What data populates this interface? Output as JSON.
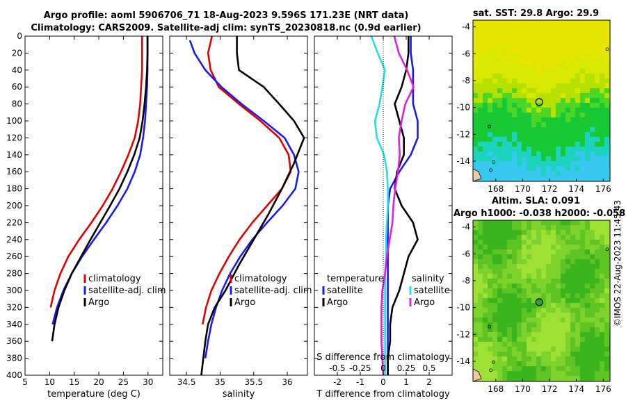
{
  "title": {
    "line1": "Argo profile: aoml 5906706_71 18-Aug-2023 9.596S 171.23E (NRT data)",
    "line2": "Climatology: CARS2009. Satellite-adj clim: synTS_20230818.nc (0.9d earlier)"
  },
  "credit": "©IMOS 22-Aug-2023 11:45:43",
  "colors": {
    "climatology": "#e00000",
    "satellite": "#1a1aee",
    "argo": "#000000",
    "temperature_diff": "#22e0e8",
    "salinity_diff": "#e020e0"
  },
  "chart_data": [
    {
      "id": "temp",
      "type": "line",
      "xlabel": "temperature (deg C)",
      "ylabel": "",
      "xlim": [
        5,
        33
      ],
      "ylim": [
        0,
        400
      ],
      "xticks": [
        5,
        10,
        15,
        20,
        25,
        30
      ],
      "yticks": [
        0,
        20,
        40,
        60,
        80,
        100,
        120,
        140,
        160,
        180,
        200,
        220,
        240,
        260,
        280,
        300,
        320,
        340,
        360,
        380,
        400
      ],
      "legend": [
        "climatology",
        "satellite-adj. clim",
        "Argo"
      ],
      "series": [
        {
          "name": "climatology",
          "color": "#e00000",
          "x": [
            28.8,
            28.8,
            28.8,
            28.6,
            28.4,
            28.0,
            27.3,
            26.0,
            24.5,
            22.8,
            20.8,
            18.5,
            16.0,
            13.8,
            12.2,
            11.0,
            10.2
          ],
          "y": [
            0,
            20,
            40,
            60,
            80,
            100,
            120,
            140,
            160,
            180,
            200,
            220,
            240,
            260,
            280,
            300,
            320
          ]
        },
        {
          "name": "satellite-adj. clim",
          "color": "#1a1aee",
          "x": [
            29.9,
            29.9,
            29.9,
            29.8,
            29.6,
            29.4,
            29.0,
            28.4,
            27.3,
            25.8,
            23.8,
            21.5,
            19.0,
            16.6,
            14.5,
            12.8,
            11.5,
            10.6
          ],
          "y": [
            0,
            20,
            40,
            60,
            80,
            100,
            120,
            140,
            160,
            180,
            200,
            220,
            240,
            260,
            280,
            300,
            320,
            340
          ]
        },
        {
          "name": "Argo",
          "color": "#000000",
          "x": [
            29.9,
            29.9,
            29.8,
            29.6,
            29.3,
            28.9,
            28.3,
            27.2,
            25.8,
            24.2,
            22.3,
            20.3,
            18.3,
            16.4,
            14.5,
            13.0,
            11.8,
            11.0,
            10.5
          ],
          "y": [
            0,
            20,
            40,
            60,
            80,
            100,
            120,
            140,
            160,
            180,
            200,
            220,
            240,
            260,
            280,
            300,
            320,
            340,
            360
          ]
        }
      ]
    },
    {
      "id": "sal",
      "type": "line",
      "xlabel": "salinity",
      "ylabel": "",
      "xlim": [
        34.25,
        36.3
      ],
      "ylim": [
        0,
        400
      ],
      "xticks": [
        34.5,
        35,
        35.5,
        36
      ],
      "legend": [
        "climatology",
        "satellite-adj. clim",
        "Argo"
      ],
      "series": [
        {
          "name": "climatology",
          "color": "#e00000",
          "x": [
            34.88,
            34.82,
            34.86,
            34.98,
            35.28,
            35.6,
            35.88,
            36.02,
            36.05,
            35.92,
            35.7,
            35.48,
            35.29,
            35.13,
            34.99,
            34.87,
            34.79,
            34.74
          ],
          "y": [
            0,
            20,
            40,
            60,
            80,
            100,
            120,
            140,
            160,
            180,
            200,
            220,
            240,
            260,
            280,
            300,
            320,
            340
          ]
        },
        {
          "name": "satellite-adj. clim",
          "color": "#1a1aee",
          "x": [
            34.55,
            34.62,
            34.78,
            35.02,
            35.32,
            35.65,
            35.96,
            36.1,
            36.17,
            36.12,
            35.93,
            35.7,
            35.48,
            35.3,
            35.15,
            35.03,
            34.94,
            34.87,
            34.82,
            34.78
          ],
          "y": [
            5,
            20,
            40,
            60,
            80,
            100,
            120,
            140,
            160,
            180,
            200,
            220,
            240,
            260,
            280,
            300,
            320,
            340,
            360,
            380
          ]
        },
        {
          "name": "Argo",
          "color": "#000000",
          "x": [
            35.25,
            35.25,
            35.28,
            35.65,
            35.88,
            36.1,
            36.25,
            36.1,
            35.92,
            35.72,
            35.5,
            35.28,
            35.08,
            34.92,
            34.82,
            34.78,
            34.75,
            34.72
          ],
          "y": [
            0,
            20,
            40,
            60,
            80,
            100,
            120,
            150,
            180,
            210,
            240,
            270,
            300,
            320,
            340,
            360,
            380,
            400
          ]
        }
      ]
    },
    {
      "id": "diff",
      "type": "line",
      "xlabel": "T difference from climatology",
      "top_xlabel": "S difference from climatology",
      "xlim": [
        -3,
        3
      ],
      "ylim": [
        0,
        400
      ],
      "xticks": [
        -2,
        -1,
        0,
        1,
        2
      ],
      "top_xlim": [
        -0.75,
        0.75
      ],
      "top_xticks": [
        -0.5,
        -0.25,
        0,
        0.25,
        0.5
      ],
      "legend_left": {
        "title": "temperature",
        "items": [
          "satellite",
          "Argo"
        ]
      },
      "legend_right": {
        "title": "salinity",
        "items": [
          "satellite",
          "Argo"
        ]
      },
      "series": [
        {
          "name": "temperature satellite",
          "color": "#1a1aee",
          "x": [
            1.2,
            1.2,
            1.3,
            1.3,
            1.3,
            1.5,
            1.5,
            1.2,
            0.7,
            0.3,
            0.2,
            0.2,
            0.2,
            0.2,
            0.2,
            0.2,
            0.2,
            0.2,
            0.2,
            0.2,
            0.2
          ],
          "y": [
            0,
            20,
            40,
            60,
            80,
            100,
            120,
            140,
            160,
            180,
            200,
            220,
            240,
            260,
            280,
            300,
            320,
            340,
            360,
            380,
            400
          ]
        },
        {
          "name": "temperature Argo",
          "color": "#000000",
          "x": [
            1.1,
            1.1,
            1.0,
            0.8,
            0.5,
            0.7,
            0.9,
            0.9,
            0.6,
            0.5,
            0.8,
            1.3,
            1.5,
            1.1,
            0.9,
            0.7,
            0.4,
            0.3,
            0.3,
            0.2,
            0.2
          ],
          "y": [
            0,
            20,
            40,
            60,
            80,
            100,
            120,
            140,
            160,
            180,
            200,
            220,
            240,
            260,
            280,
            300,
            320,
            340,
            360,
            380,
            400
          ]
        },
        {
          "name": "salinity satellite",
          "color": "#22e0e8",
          "x": [
            -0.13,
            -0.06,
            0.02,
            -0.01,
            -0.04,
            -0.09,
            -0.07,
            0.01,
            0.04,
            0.05,
            0.05,
            0.04,
            0.03,
            0.03,
            0.02,
            0.02,
            0.02,
            0.02,
            0.02
          ],
          "y": [
            0,
            20,
            40,
            60,
            80,
            100,
            120,
            140,
            160,
            180,
            200,
            220,
            240,
            260,
            280,
            300,
            320,
            360,
            400
          ]
        },
        {
          "name": "salinity Argo",
          "color": "#e020e0",
          "x": [
            0.12,
            0.17,
            0.26,
            0.33,
            0.24,
            0.2,
            0.17,
            0.18,
            0.16,
            0.13,
            0.11,
            0.1,
            0.07,
            0.04,
            0.02,
            -0.01,
            -0.02,
            -0.02,
            0.0
          ],
          "y": [
            0,
            20,
            40,
            60,
            80,
            100,
            120,
            140,
            160,
            180,
            200,
            220,
            240,
            260,
            280,
            300,
            320,
            360,
            400
          ]
        }
      ]
    },
    {
      "id": "sst_map",
      "type": "heatmap",
      "title": "sat. SST: 29.8 Argo: 29.9",
      "xlim": [
        166.3,
        176.5
      ],
      "ylim": [
        -15.5,
        -3.5
      ],
      "xticks": [
        168,
        170,
        172,
        174,
        176
      ],
      "yticks": [
        -4,
        -6,
        -8,
        -10,
        -12,
        -14
      ],
      "marker": {
        "lon": 171.23,
        "lat": -9.596,
        "fill": "none"
      },
      "colors": [
        "#e6e600",
        "#d8e800",
        "#b6e000",
        "#4cd626",
        "#18c834",
        "#1ad4c0",
        "#38c8f0"
      ]
    },
    {
      "id": "sla_map",
      "type": "heatmap",
      "title": "Altim. SLA: 0.091",
      "subtitle": "Argo h1000: -0.038 h2000: -0.058",
      "xlim": [
        166.3,
        176.5
      ],
      "ylim": [
        -15.5,
        -3.5
      ],
      "xticks": [
        168,
        170,
        172,
        174,
        176
      ],
      "yticks": [
        -4,
        -6,
        -8,
        -10,
        -12,
        -14
      ],
      "marker": {
        "lon": 171.23,
        "lat": -9.596,
        "fill": "#2aa52a"
      },
      "colors": [
        "#9fe034",
        "#7ed22c",
        "#5ec424",
        "#3ab51d"
      ]
    }
  ]
}
